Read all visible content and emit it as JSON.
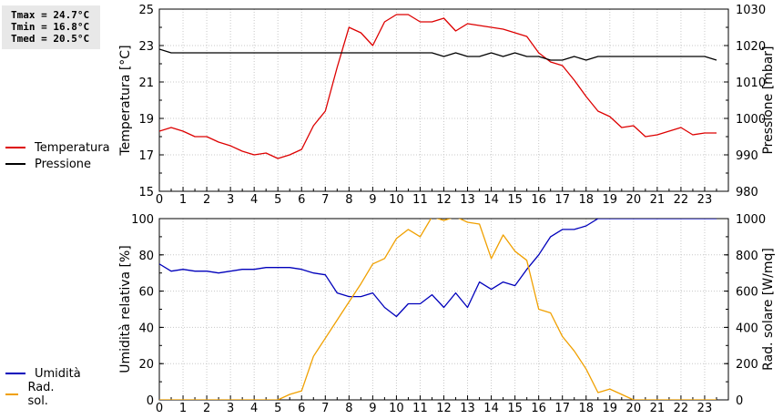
{
  "stats": {
    "tmax": "Tmax = 24.7°C",
    "tmin": "Tmin = 16.8°C",
    "tmed": "Tmed = 20.5°C"
  },
  "chart_data": [
    {
      "type": "line",
      "xlabel": "",
      "ylabel": "Temperatura [°C]",
      "y2label": "Pressione [mbar]",
      "xlim": [
        0,
        24
      ],
      "x_ticks": [
        "0",
        "1",
        "2",
        "3",
        "4",
        "5",
        "6",
        "7",
        "8",
        "9",
        "10",
        "11",
        "12",
        "13",
        "14",
        "15",
        "16",
        "17",
        "18",
        "19",
        "20",
        "21",
        "22",
        "23"
      ],
      "ylim": [
        15,
        25
      ],
      "y_ticks": [
        15,
        17,
        19,
        21,
        23,
        25
      ],
      "y2lim": [
        980,
        1030
      ],
      "y2_ticks": [
        980,
        990,
        1000,
        1010,
        1020,
        1030
      ],
      "grid": true,
      "series": [
        {
          "name": "Temperatura",
          "color": "#dd0000",
          "axis": "left",
          "x": [
            0,
            0.5,
            1,
            1.5,
            2,
            2.5,
            3,
            3.5,
            4,
            4.5,
            5,
            5.5,
            6,
            6.5,
            7,
            7.5,
            8,
            8.5,
            9,
            9.5,
            10,
            10.5,
            11,
            11.5,
            12,
            12.5,
            13,
            13.5,
            14,
            14.5,
            15,
            15.5,
            16,
            16.5,
            17,
            17.5,
            18,
            18.5,
            19,
            19.5,
            20,
            20.5,
            21,
            21.5,
            22,
            22.5,
            23,
            23.5
          ],
          "y": [
            18.3,
            18.5,
            18.3,
            18.0,
            18.0,
            17.7,
            17.5,
            17.2,
            17.0,
            17.1,
            16.8,
            17.0,
            17.3,
            18.6,
            19.4,
            21.8,
            24.0,
            23.7,
            23.0,
            24.3,
            24.7,
            24.7,
            24.3,
            24.3,
            24.5,
            23.8,
            24.2,
            24.1,
            24.0,
            23.9,
            23.7,
            23.5,
            22.6,
            22.1,
            21.9,
            21.1,
            20.2,
            19.4,
            19.1,
            18.5,
            18.6,
            18.0,
            18.1,
            18.3,
            18.5,
            18.1,
            18.2,
            18.2
          ]
        },
        {
          "name": "Pressione",
          "color": "#000000",
          "axis": "right",
          "x": [
            0,
            0.5,
            1,
            1.5,
            2,
            2.5,
            3,
            3.5,
            4,
            4.5,
            5,
            5.5,
            6,
            6.5,
            7,
            7.5,
            8,
            8.5,
            9,
            9.5,
            10,
            10.5,
            11,
            11.5,
            12,
            12.5,
            13,
            13.5,
            14,
            14.5,
            15,
            15.5,
            16,
            16.5,
            17,
            17.5,
            18,
            18.5,
            19,
            19.5,
            20,
            20.5,
            21,
            21.5,
            22,
            22.5,
            23,
            23.5
          ],
          "y": [
            1019,
            1018,
            1018,
            1018,
            1018,
            1018,
            1018,
            1018,
            1018,
            1018,
            1018,
            1018,
            1018,
            1018,
            1018,
            1018,
            1018,
            1018,
            1018,
            1018,
            1018,
            1018,
            1018,
            1018,
            1017,
            1018,
            1017,
            1017,
            1018,
            1017,
            1018,
            1017,
            1017,
            1016,
            1016,
            1017,
            1016,
            1017,
            1017,
            1017,
            1017,
            1017,
            1017,
            1017,
            1017,
            1017,
            1017,
            1016
          ]
        }
      ]
    },
    {
      "type": "line",
      "xlabel": "",
      "ylabel": "Umidità relativa [%]",
      "y2label": "Rad. solare [W/mq]",
      "xlim": [
        0,
        24
      ],
      "x_ticks": [
        "0",
        "1",
        "2",
        "3",
        "4",
        "5",
        "6",
        "7",
        "8",
        "9",
        "10",
        "11",
        "12",
        "13",
        "14",
        "15",
        "16",
        "17",
        "18",
        "19",
        "20",
        "21",
        "22",
        "23"
      ],
      "ylim": [
        0,
        100
      ],
      "y_ticks": [
        0,
        20,
        40,
        60,
        80,
        100
      ],
      "y2lim": [
        0,
        1000
      ],
      "y2_ticks": [
        0,
        200,
        400,
        600,
        800,
        1000
      ],
      "grid": true,
      "series": [
        {
          "name": "Umidità",
          "color": "#0000bb",
          "axis": "left",
          "x": [
            0,
            0.5,
            1,
            1.5,
            2,
            2.5,
            3,
            3.5,
            4,
            4.5,
            5,
            5.5,
            6,
            6.5,
            7,
            7.5,
            8,
            8.5,
            9,
            9.5,
            10,
            10.5,
            11,
            11.5,
            12,
            12.5,
            13,
            13.5,
            14,
            14.5,
            15,
            15.5,
            16,
            16.5,
            17,
            17.5,
            18,
            18.5,
            19,
            19.5,
            20,
            20.5,
            21,
            21.5,
            22,
            22.5,
            23,
            23.5
          ],
          "y": [
            75,
            71,
            72,
            71,
            71,
            70,
            71,
            72,
            72,
            73,
            73,
            73,
            72,
            70,
            69,
            59,
            57,
            57,
            59,
            51,
            46,
            53,
            53,
            58,
            51,
            59,
            51,
            65,
            61,
            65,
            63,
            72,
            80,
            90,
            94,
            94,
            96,
            100,
            100,
            100,
            100,
            100,
            100,
            100,
            100,
            100,
            100,
            100
          ]
        },
        {
          "name": "Rad. sol.",
          "color": "#f0a000",
          "axis": "right",
          "x": [
            0,
            0.5,
            1,
            1.5,
            2,
            2.5,
            3,
            3.5,
            4,
            4.5,
            5,
            5.5,
            6,
            6.5,
            7,
            7.5,
            8,
            8.5,
            9,
            9.5,
            10,
            10.5,
            11,
            11.5,
            12,
            12.5,
            13,
            13.5,
            14,
            14.5,
            15,
            15.5,
            16,
            16.5,
            17,
            17.5,
            18,
            18.5,
            19,
            19.5,
            20,
            20.5,
            21,
            21.5,
            22,
            22.5,
            23,
            23.5
          ],
          "y": [
            0,
            0,
            0,
            0,
            0,
            0,
            0,
            0,
            0,
            0,
            0,
            30,
            50,
            240,
            340,
            440,
            540,
            640,
            750,
            780,
            890,
            940,
            900,
            1010,
            990,
            1010,
            980,
            970,
            780,
            910,
            820,
            770,
            500,
            480,
            350,
            270,
            170,
            40,
            60,
            30,
            0,
            0,
            0,
            0,
            0,
            0,
            0,
            0
          ]
        }
      ]
    }
  ]
}
